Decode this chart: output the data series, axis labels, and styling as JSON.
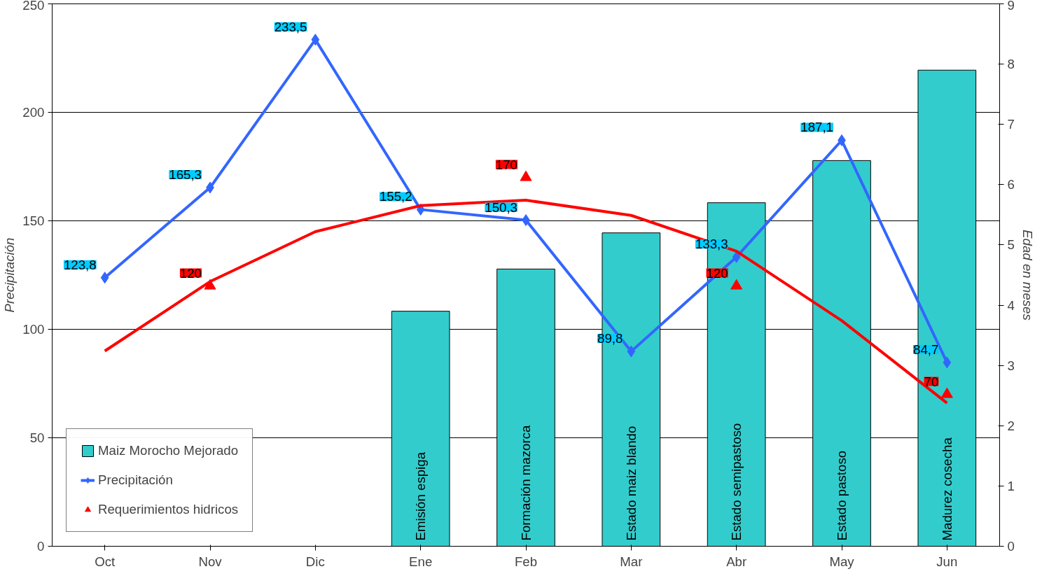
{
  "chart_data": {
    "type": "bar",
    "categories": [
      "Oct",
      "Nov",
      "Dic",
      "Ene",
      "Feb",
      "Mar",
      "Abr",
      "May",
      "Jun"
    ],
    "ylabel": "Precipitación",
    "y2label": "Edad en meses",
    "ylim": [
      0,
      250
    ],
    "yticks": [
      0,
      50,
      100,
      150,
      200,
      250
    ],
    "y2lim": [
      0,
      9
    ],
    "y2ticks": [
      0,
      1,
      2,
      3,
      4,
      5,
      6,
      7,
      8,
      9
    ],
    "grid": "y",
    "legend": "bottom left",
    "series": [
      {
        "name": "Maiz Morocho Mejorado",
        "axis": "y2",
        "color": "#33cccc",
        "values": [
          null,
          null,
          null,
          3.9,
          4.6,
          5.2,
          5.7,
          6.4,
          7.9
        ],
        "value_labels": [
          null,
          null,
          null,
          "Emisión espiga",
          "Formación mazorca",
          "Estado maiz blando",
          "Estado semipastoso",
          "Estado pastoso",
          "Madurez cosecha"
        ]
      },
      {
        "name": "Precipitación",
        "type": "line",
        "marker": "diamond",
        "color": "#3366ff",
        "values": [
          123.8,
          165.3,
          233.5,
          155.2,
          150.3,
          89.8,
          133.3,
          187.1,
          84.7
        ],
        "value_labels": [
          "123,8",
          "165,3",
          "233,5",
          "155,2",
          "150,3",
          "89,8",
          "133,3",
          "187,1",
          "84,7"
        ]
      },
      {
        "name": "Requerimientos hidricos",
        "type": "scatter",
        "marker": "triangle",
        "color": "#ff0000",
        "values": [
          null,
          120,
          null,
          null,
          170,
          null,
          120,
          null,
          70
        ],
        "value_labels": [
          null,
          "120",
          null,
          null,
          "170",
          null,
          "120",
          null,
          "70"
        ]
      },
      {
        "type": "line",
        "marker": "none",
        "color": "#ff0000",
        "values": [
          90,
          122,
          145,
          157,
          159.5,
          152.5,
          136,
          104,
          66
        ]
      }
    ]
  }
}
